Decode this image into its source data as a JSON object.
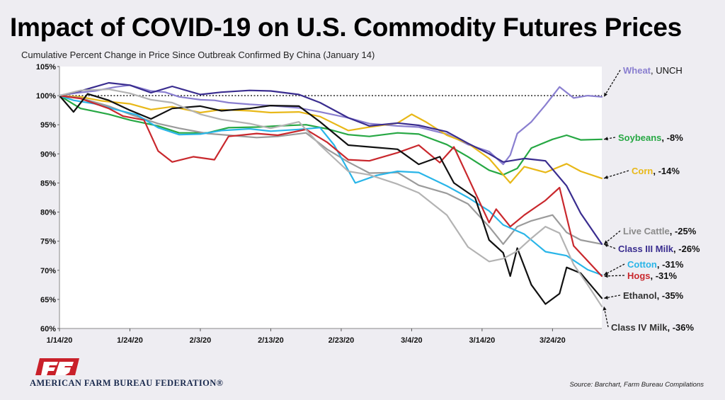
{
  "chart_data": {
    "type": "line",
    "title": "Impact of COVID-19 on U.S. Commodity Futures Prices",
    "subtitle": "Cumulative Percent Change in Price Since Outbreak Confirmed By China (January 14)",
    "ylim": [
      60,
      105
    ],
    "y_ticks": [
      "105%",
      "100%",
      "95%",
      "90%",
      "85%",
      "80%",
      "75%",
      "70%",
      "65%",
      "60%"
    ],
    "x_range": [
      "2020-01-14",
      "2020-03-31"
    ],
    "x_ticks": [
      "1/14/20",
      "1/24/20",
      "2/3/20",
      "2/13/20",
      "2/23/20",
      "3/4/20",
      "3/14/20",
      "3/24/20"
    ],
    "reference_line": 100,
    "series": [
      {
        "name": "Wheat",
        "change": "UNCH",
        "color": "#8a7fd0",
        "points": [
          [
            "2020-01-14",
            100
          ],
          [
            "2020-01-16",
            100.4
          ],
          [
            "2020-01-19",
            100.8
          ],
          [
            "2020-01-22",
            101.5
          ],
          [
            "2020-01-24",
            101.8
          ],
          [
            "2020-01-27",
            100.8
          ],
          [
            "2020-01-29",
            100.6
          ],
          [
            "2020-01-31",
            99.8
          ],
          [
            "2020-02-03",
            99.3
          ],
          [
            "2020-02-05",
            99.2
          ],
          [
            "2020-02-07",
            98.8
          ],
          [
            "2020-02-10",
            98.5
          ],
          [
            "2020-02-13",
            98.3
          ],
          [
            "2020-02-17",
            97.9
          ],
          [
            "2020-02-20",
            97.2
          ],
          [
            "2020-02-24",
            96.2
          ],
          [
            "2020-02-27",
            95.2
          ],
          [
            "2020-03-02",
            94.8
          ],
          [
            "2020-03-05",
            94.6
          ],
          [
            "2020-03-09",
            93.4
          ],
          [
            "2020-03-12",
            91.6
          ],
          [
            "2020-03-15",
            90.4
          ],
          [
            "2020-03-17",
            88.2
          ],
          [
            "2020-03-18",
            89.8
          ],
          [
            "2020-03-19",
            93.5
          ],
          [
            "2020-03-21",
            95.5
          ],
          [
            "2020-03-23",
            98.4
          ],
          [
            "2020-03-25",
            101.5
          ],
          [
            "2020-03-27",
            99.6
          ],
          [
            "2020-03-29",
            100
          ],
          [
            "2020-03-31",
            99.8
          ]
        ]
      },
      {
        "name": "Soybeans",
        "change": "-8%",
        "color": "#27a844",
        "points": [
          [
            "2020-01-14",
            100
          ],
          [
            "2020-01-17",
            97.8
          ],
          [
            "2020-01-21",
            96.8
          ],
          [
            "2020-01-24",
            95.8
          ],
          [
            "2020-01-28",
            94.8
          ],
          [
            "2020-01-31",
            93.6
          ],
          [
            "2020-02-04",
            93.6
          ],
          [
            "2020-02-07",
            94.5
          ],
          [
            "2020-02-11",
            94.6
          ],
          [
            "2020-02-14",
            94.8
          ],
          [
            "2020-02-18",
            95
          ],
          [
            "2020-02-21",
            94.3
          ],
          [
            "2020-02-24",
            93.3
          ],
          [
            "2020-02-27",
            93
          ],
          [
            "2020-03-02",
            93.6
          ],
          [
            "2020-03-05",
            93.4
          ],
          [
            "2020-03-09",
            91.6
          ],
          [
            "2020-03-12",
            89.5
          ],
          [
            "2020-03-15",
            87.2
          ],
          [
            "2020-03-17",
            86.4
          ],
          [
            "2020-03-19",
            87.5
          ],
          [
            "2020-03-21",
            91
          ],
          [
            "2020-03-24",
            92.5
          ],
          [
            "2020-03-26",
            93.2
          ],
          [
            "2020-03-28",
            92.4
          ],
          [
            "2020-03-31",
            92.5
          ]
        ]
      },
      {
        "name": "Corn",
        "change": "-14%",
        "color": "#e8b818",
        "points": [
          [
            "2020-01-14",
            100
          ],
          [
            "2020-01-17",
            99.8
          ],
          [
            "2020-01-20",
            99.1
          ],
          [
            "2020-01-24",
            98.6
          ],
          [
            "2020-01-27",
            97.6
          ],
          [
            "2020-01-30",
            98.1
          ],
          [
            "2020-02-03",
            97.1
          ],
          [
            "2020-02-06",
            97.6
          ],
          [
            "2020-02-10",
            97.4
          ],
          [
            "2020-02-13",
            97.1
          ],
          [
            "2020-02-17",
            97.2
          ],
          [
            "2020-02-20",
            96.4
          ],
          [
            "2020-02-24",
            94
          ],
          [
            "2020-02-27",
            94.6
          ],
          [
            "2020-03-02",
            95.3
          ],
          [
            "2020-03-04",
            96.8
          ],
          [
            "2020-03-06",
            95.5
          ],
          [
            "2020-03-09",
            93.2
          ],
          [
            "2020-03-12",
            91.8
          ],
          [
            "2020-03-15",
            89.2
          ],
          [
            "2020-03-18",
            85
          ],
          [
            "2020-03-20",
            87.8
          ],
          [
            "2020-03-23",
            86.8
          ],
          [
            "2020-03-26",
            88.3
          ],
          [
            "2020-03-28",
            87
          ],
          [
            "2020-03-31",
            85.8
          ]
        ]
      },
      {
        "name": "Live Cattle",
        "change": "-25%",
        "color": "#9b9b9b",
        "points": [
          [
            "2020-01-14",
            100
          ],
          [
            "2020-01-17",
            99.6
          ],
          [
            "2020-01-21",
            98.2
          ],
          [
            "2020-01-24",
            96.8
          ],
          [
            "2020-01-28",
            95.2
          ],
          [
            "2020-01-31",
            94.4
          ],
          [
            "2020-02-04",
            93.5
          ],
          [
            "2020-02-07",
            93.2
          ],
          [
            "2020-02-11",
            92.8
          ],
          [
            "2020-02-14",
            93
          ],
          [
            "2020-02-18",
            93.6
          ],
          [
            "2020-02-21",
            90.8
          ],
          [
            "2020-02-24",
            88.6
          ],
          [
            "2020-02-27",
            86.7
          ],
          [
            "2020-03-02",
            86.8
          ],
          [
            "2020-03-05",
            84.6
          ],
          [
            "2020-03-09",
            83.2
          ],
          [
            "2020-03-12",
            81.4
          ],
          [
            "2020-03-15",
            77.5
          ],
          [
            "2020-03-17",
            74.5
          ],
          [
            "2020-03-19",
            77.5
          ],
          [
            "2020-03-21",
            78.5
          ],
          [
            "2020-03-24",
            79.5
          ],
          [
            "2020-03-26",
            76.5
          ],
          [
            "2020-03-28",
            75.2
          ],
          [
            "2020-03-31",
            74.5
          ]
        ]
      },
      {
        "name": "Class III Milk",
        "change": "-26%",
        "color": "#3a2d8f",
        "points": [
          [
            "2020-01-14",
            100
          ],
          [
            "2020-01-17",
            100.8
          ],
          [
            "2020-01-21",
            102.2
          ],
          [
            "2020-01-24",
            101.8
          ],
          [
            "2020-01-27",
            100.5
          ],
          [
            "2020-01-30",
            101.6
          ],
          [
            "2020-02-03",
            100.2
          ],
          [
            "2020-02-06",
            100.6
          ],
          [
            "2020-02-10",
            100.9
          ],
          [
            "2020-02-13",
            100.8
          ],
          [
            "2020-02-17",
            100.2
          ],
          [
            "2020-02-20",
            98.8
          ],
          [
            "2020-02-24",
            96.2
          ],
          [
            "2020-02-27",
            94.8
          ],
          [
            "2020-03-02",
            95.3
          ],
          [
            "2020-03-05",
            94.9
          ],
          [
            "2020-03-09",
            93.8
          ],
          [
            "2020-03-12",
            91.8
          ],
          [
            "2020-03-15",
            90
          ],
          [
            "2020-03-17",
            88.6
          ],
          [
            "2020-03-20",
            89.2
          ],
          [
            "2020-03-23",
            88.8
          ],
          [
            "2020-03-26",
            84.5
          ],
          [
            "2020-03-28",
            79.8
          ],
          [
            "2020-03-31",
            74.5
          ]
        ]
      },
      {
        "name": "Cotton",
        "change": "-31%",
        "color": "#29b5e8",
        "points": [
          [
            "2020-01-14",
            100
          ],
          [
            "2020-01-16",
            99.2
          ],
          [
            "2020-01-19",
            98.6
          ],
          [
            "2020-01-22",
            97.6
          ],
          [
            "2020-01-25",
            96.7
          ],
          [
            "2020-01-28",
            94.5
          ],
          [
            "2020-01-31",
            93.3
          ],
          [
            "2020-02-03",
            93.4
          ],
          [
            "2020-02-06",
            94
          ],
          [
            "2020-02-10",
            94.3
          ],
          [
            "2020-02-13",
            93.9
          ],
          [
            "2020-02-17",
            94.2
          ],
          [
            "2020-02-20",
            94.5
          ],
          [
            "2020-02-22",
            91.5
          ],
          [
            "2020-02-25",
            85
          ],
          [
            "2020-02-28",
            86.3
          ],
          [
            "2020-03-02",
            87
          ],
          [
            "2020-03-05",
            86.8
          ],
          [
            "2020-03-09",
            84.5
          ],
          [
            "2020-03-12",
            82.5
          ],
          [
            "2020-03-15",
            80.2
          ],
          [
            "2020-03-17",
            77.8
          ],
          [
            "2020-03-20",
            76.2
          ],
          [
            "2020-03-23",
            73.2
          ],
          [
            "2020-03-26",
            72.5
          ],
          [
            "2020-03-29",
            70.1
          ],
          [
            "2020-03-31",
            69.2
          ]
        ]
      },
      {
        "name": "Hogs",
        "change": "-31%",
        "color": "#c9282d",
        "points": [
          [
            "2020-01-14",
            100
          ],
          [
            "2020-01-17",
            99.5
          ],
          [
            "2020-01-21",
            97.8
          ],
          [
            "2020-01-23",
            96.5
          ],
          [
            "2020-01-26",
            95.8
          ],
          [
            "2020-01-28",
            90.5
          ],
          [
            "2020-01-30",
            88.6
          ],
          [
            "2020-02-02",
            89.5
          ],
          [
            "2020-02-05",
            89
          ],
          [
            "2020-02-07",
            93
          ],
          [
            "2020-02-11",
            93.5
          ],
          [
            "2020-02-14",
            93.2
          ],
          [
            "2020-02-18",
            94.2
          ],
          [
            "2020-02-21",
            92
          ],
          [
            "2020-02-24",
            89
          ],
          [
            "2020-02-27",
            88.8
          ],
          [
            "2020-03-02",
            90.2
          ],
          [
            "2020-03-05",
            91.5
          ],
          [
            "2020-03-08",
            88.5
          ],
          [
            "2020-03-10",
            91.2
          ],
          [
            "2020-03-12",
            86
          ],
          [
            "2020-03-15",
            78.2
          ],
          [
            "2020-03-16",
            80.5
          ],
          [
            "2020-03-18",
            77.5
          ],
          [
            "2020-03-20",
            79.5
          ],
          [
            "2020-03-23",
            82
          ],
          [
            "2020-03-25",
            84.2
          ],
          [
            "2020-03-27",
            74.2
          ],
          [
            "2020-03-31",
            69
          ]
        ]
      },
      {
        "name": "Ethanol",
        "change": "-35%",
        "color": "#111111",
        "points": [
          [
            "2020-01-14",
            100
          ],
          [
            "2020-01-16",
            97.2
          ],
          [
            "2020-01-18",
            100.3
          ],
          [
            "2020-01-21",
            99.2
          ],
          [
            "2020-01-24",
            97.5
          ],
          [
            "2020-01-27",
            96
          ],
          [
            "2020-01-30",
            97.8
          ],
          [
            "2020-02-03",
            98.2
          ],
          [
            "2020-02-06",
            97.4
          ],
          [
            "2020-02-10",
            97.8
          ],
          [
            "2020-02-13",
            98.3
          ],
          [
            "2020-02-17",
            98.2
          ],
          [
            "2020-02-20",
            95.5
          ],
          [
            "2020-02-24",
            91.5
          ],
          [
            "2020-02-27",
            91.2
          ],
          [
            "2020-03-02",
            90.8
          ],
          [
            "2020-03-05",
            88.2
          ],
          [
            "2020-03-08",
            89.5
          ],
          [
            "2020-03-10",
            85
          ],
          [
            "2020-03-13",
            82.5
          ],
          [
            "2020-03-15",
            75.2
          ],
          [
            "2020-03-17",
            73
          ],
          [
            "2020-03-18",
            69
          ],
          [
            "2020-03-19",
            73.8
          ],
          [
            "2020-03-21",
            67.5
          ],
          [
            "2020-03-23",
            64.2
          ],
          [
            "2020-03-25",
            66
          ],
          [
            "2020-03-26",
            70.5
          ],
          [
            "2020-03-28",
            69.5
          ],
          [
            "2020-03-31",
            65.2
          ]
        ]
      },
      {
        "name": "Class IV Milk",
        "change": "-36%",
        "color": "#b3b3b3",
        "points": [
          [
            "2020-01-14",
            100
          ],
          [
            "2020-01-17",
            100.9
          ],
          [
            "2020-01-21",
            101.1
          ],
          [
            "2020-01-24",
            100.4
          ],
          [
            "2020-01-27",
            99.3
          ],
          [
            "2020-01-30",
            98.8
          ],
          [
            "2020-02-03",
            96.8
          ],
          [
            "2020-02-06",
            95.9
          ],
          [
            "2020-02-10",
            95.2
          ],
          [
            "2020-02-13",
            94.4
          ],
          [
            "2020-02-17",
            95.5
          ],
          [
            "2020-02-20",
            91.5
          ],
          [
            "2020-02-24",
            87
          ],
          [
            "2020-02-27",
            86.4
          ],
          [
            "2020-03-02",
            84.8
          ],
          [
            "2020-03-05",
            83.3
          ],
          [
            "2020-03-09",
            79.5
          ],
          [
            "2020-03-12",
            74
          ],
          [
            "2020-03-15",
            71.5
          ],
          [
            "2020-03-17",
            72
          ],
          [
            "2020-03-19",
            73.3
          ],
          [
            "2020-03-21",
            75.5
          ],
          [
            "2020-03-23",
            77.5
          ],
          [
            "2020-03-25",
            76.4
          ],
          [
            "2020-03-27",
            71
          ],
          [
            "2020-03-29",
            67.5
          ],
          [
            "2020-03-31",
            63.8
          ]
        ]
      }
    ]
  },
  "footer": {
    "org": "AMERICAN FARM BUREAU FEDERATION®",
    "source": "Source: Barchart, Farm Bureau Compilations"
  }
}
